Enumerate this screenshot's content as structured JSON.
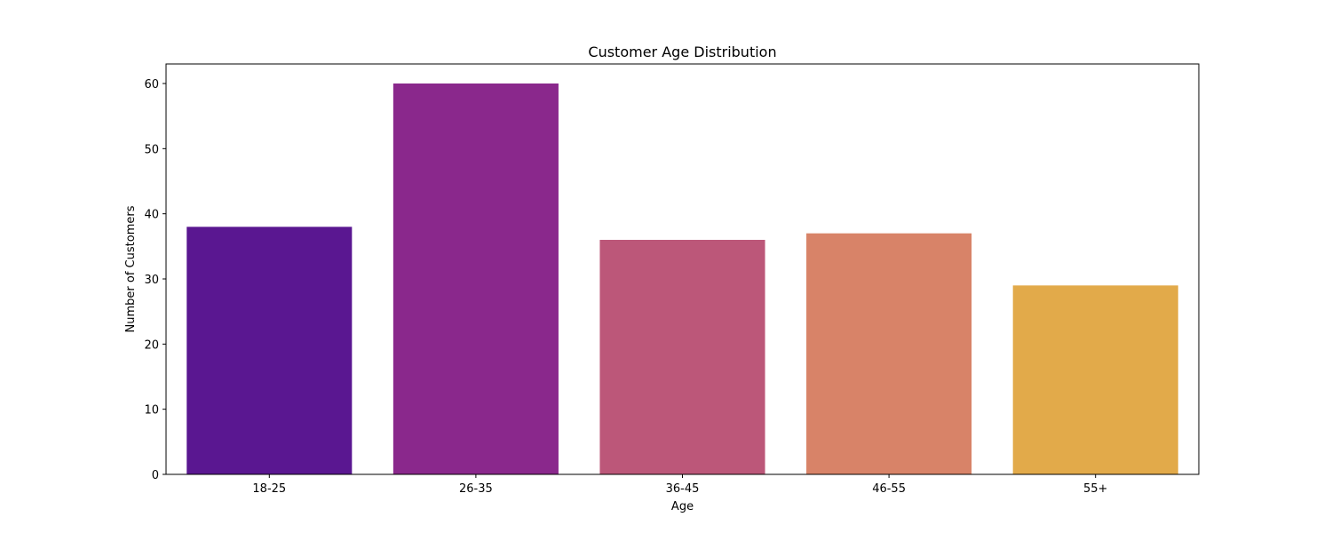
{
  "chart_data": {
    "type": "bar",
    "title": "Customer Age Distribution",
    "xlabel": "Age",
    "ylabel": "Number of Customers",
    "categories": [
      "18-25",
      "26-35",
      "36-45",
      "46-55",
      "55+"
    ],
    "values": [
      38,
      60,
      36,
      37,
      29
    ],
    "colors": [
      "#5a1791",
      "#8a288c",
      "#bc5779",
      "#d88368",
      "#e2aa4a"
    ],
    "ylim": [
      0,
      63
    ],
    "yticks": [
      0,
      10,
      20,
      30,
      40,
      50,
      60
    ],
    "grid": false,
    "legend": "none"
  }
}
